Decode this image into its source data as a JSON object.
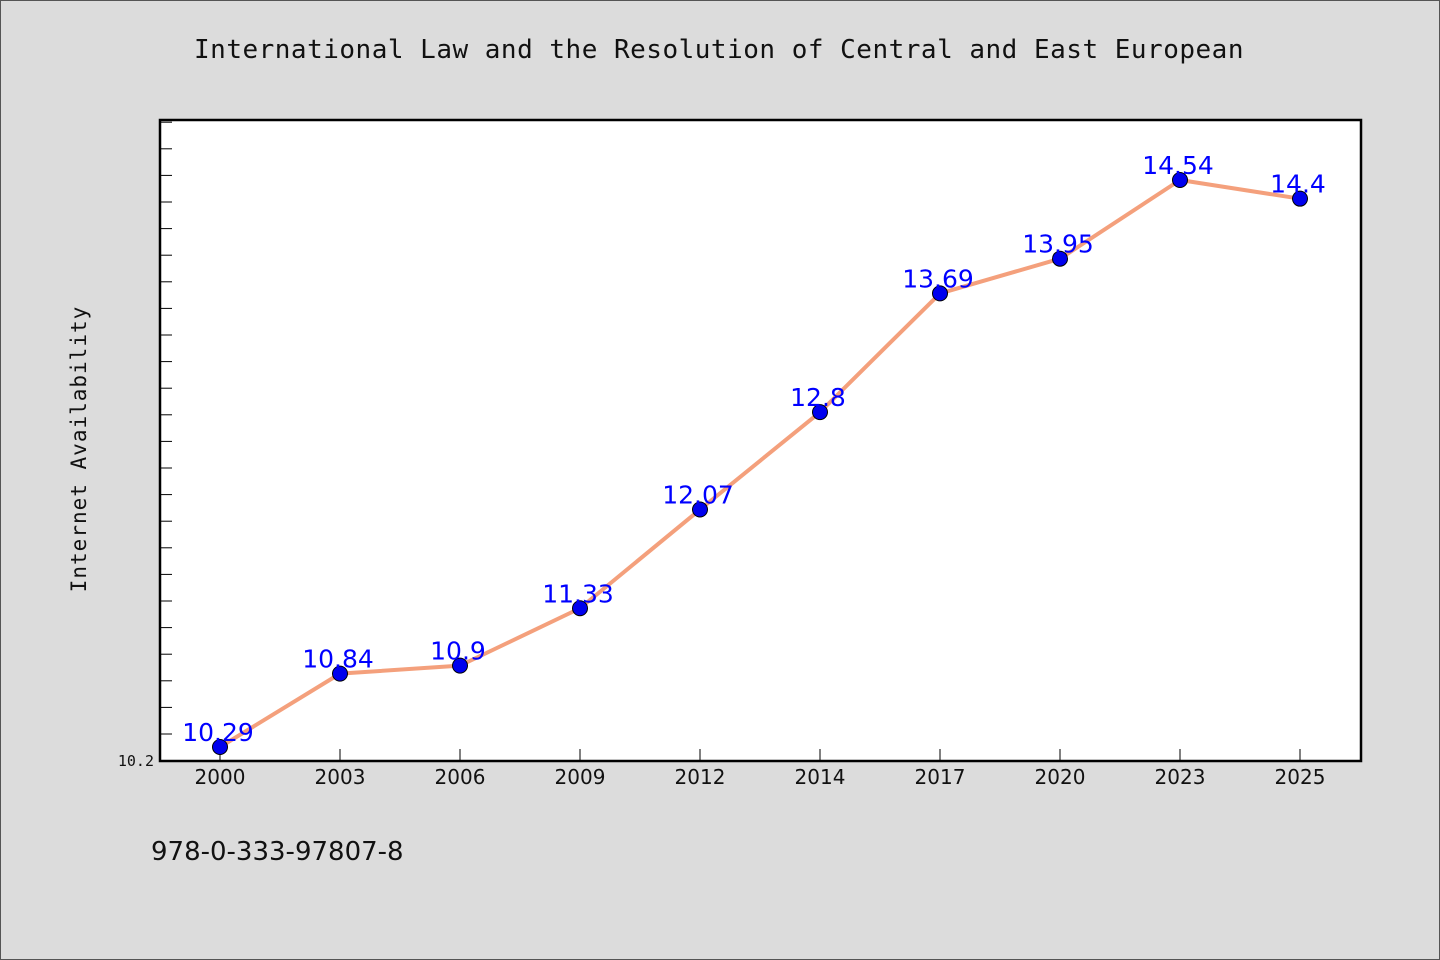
{
  "chart_data": {
    "type": "line",
    "title": "International Law and the Resolution of Central and East European",
    "xlabel": "",
    "ylabel": "Internet Availability",
    "categories": [
      "2000",
      "2003",
      "2006",
      "2009",
      "2012",
      "2014",
      "2017",
      "2020",
      "2023",
      "2025"
    ],
    "series": [
      {
        "values": [
          10.29,
          10.84,
          10.9,
          11.33,
          12.07,
          12.8,
          13.69,
          13.95,
          14.54,
          14.4
        ],
        "labels": [
          "10.29",
          "10.84",
          "10.9",
          "11.33",
          "12.07",
          "12.8",
          "13.69",
          "13.95",
          "14.54",
          "14.4"
        ],
        "line_color": "#f4a07c",
        "marker_color": "#0000ee"
      }
    ],
    "y_tick_labels": [
      "10.2"
    ],
    "ylim": [
      10.2,
      15.0
    ],
    "grid": false,
    "legend": "none",
    "label_color": "#0000ff"
  },
  "footer": {
    "isbn": "978-0-333-97807-8"
  }
}
